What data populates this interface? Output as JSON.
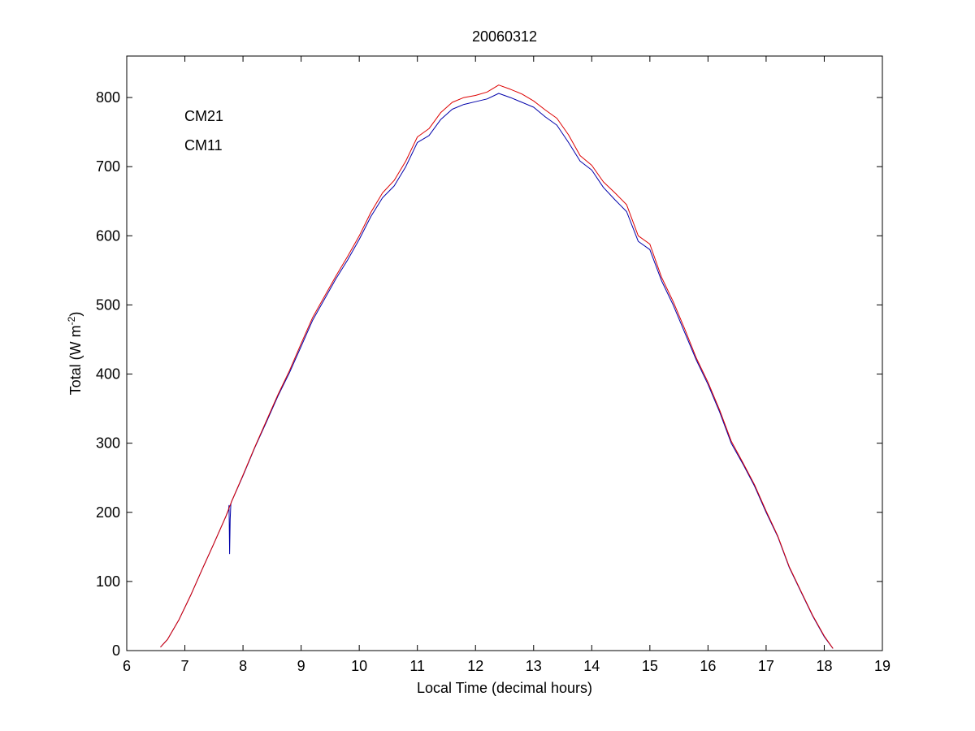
{
  "chart_data": {
    "type": "line",
    "title": "20060312",
    "xlabel": "Local Time (decimal hours)",
    "ylabel_main": "Total (W m",
    "ylabel_sup": "-2",
    "ylabel_tail": ")",
    "xlim": [
      6,
      19
    ],
    "ylim": [
      0,
      860
    ],
    "xticks": [
      "6",
      "7",
      "8",
      "9",
      "10",
      "11",
      "12",
      "13",
      "14",
      "15",
      "16",
      "17",
      "18",
      "19"
    ],
    "yticks": [
      "0",
      "100",
      "200",
      "300",
      "400",
      "500",
      "600",
      "700",
      "800"
    ],
    "grid": false,
    "legend_position": "top-left",
    "series": [
      {
        "name": "CM21",
        "color": "#0000aa",
        "x": [
          6.58,
          6.7,
          6.9,
          7.1,
          7.3,
          7.5,
          7.7,
          7.75,
          7.76,
          7.77,
          7.78,
          7.79,
          7.8,
          8.0,
          8.2,
          8.4,
          8.6,
          8.8,
          9.0,
          9.2,
          9.4,
          9.6,
          9.8,
          10.0,
          10.2,
          10.4,
          10.6,
          10.8,
          11.0,
          11.2,
          11.4,
          11.6,
          11.8,
          12.0,
          12.2,
          12.4,
          12.6,
          12.8,
          13.0,
          13.2,
          13.4,
          13.6,
          13.8,
          14.0,
          14.2,
          14.4,
          14.6,
          14.8,
          15.0,
          15.2,
          15.4,
          15.6,
          15.8,
          16.0,
          16.2,
          16.4,
          16.6,
          16.8,
          17.0,
          17.2,
          17.4,
          17.6,
          17.8,
          18.0,
          18.15
        ],
        "y": [
          5,
          16,
          45,
          80,
          118,
          155,
          193,
          203,
          210,
          140,
          190,
          212,
          215,
          253,
          293,
          330,
          368,
          402,
          440,
          478,
          508,
          538,
          565,
          595,
          628,
          655,
          672,
          700,
          735,
          745,
          768,
          783,
          790,
          794,
          798,
          806,
          800,
          793,
          786,
          772,
          760,
          735,
          708,
          695,
          670,
          652,
          635,
          592,
          580,
          535,
          500,
          460,
          420,
          385,
          345,
          300,
          270,
          238,
          200,
          165,
          120,
          85,
          50,
          20,
          3
        ]
      },
      {
        "name": "CM11",
        "color": "#dd0000",
        "x": [
          6.58,
          6.7,
          6.9,
          7.1,
          7.3,
          7.5,
          7.7,
          7.8,
          8.0,
          8.2,
          8.4,
          8.6,
          8.8,
          9.0,
          9.2,
          9.4,
          9.6,
          9.8,
          10.0,
          10.2,
          10.4,
          10.6,
          10.8,
          11.0,
          11.2,
          11.4,
          11.6,
          11.8,
          12.0,
          12.2,
          12.4,
          12.6,
          12.8,
          13.0,
          13.2,
          13.4,
          13.6,
          13.8,
          14.0,
          14.2,
          14.4,
          14.6,
          14.8,
          15.0,
          15.2,
          15.4,
          15.6,
          15.8,
          16.0,
          16.2,
          16.4,
          16.6,
          16.8,
          17.0,
          17.2,
          17.4,
          17.6,
          17.8,
          18.0,
          18.15
        ],
        "y": [
          5,
          16,
          45,
          80,
          118,
          155,
          193,
          215,
          254,
          294,
          332,
          370,
          405,
          444,
          482,
          512,
          542,
          570,
          600,
          634,
          662,
          680,
          708,
          743,
          755,
          778,
          793,
          800,
          803,
          808,
          818,
          812,
          805,
          795,
          782,
          770,
          746,
          716,
          702,
          678,
          662,
          645,
          600,
          588,
          540,
          505,
          465,
          423,
          388,
          348,
          303,
          272,
          240,
          202,
          166,
          121,
          86,
          51,
          21,
          3
        ]
      }
    ]
  }
}
